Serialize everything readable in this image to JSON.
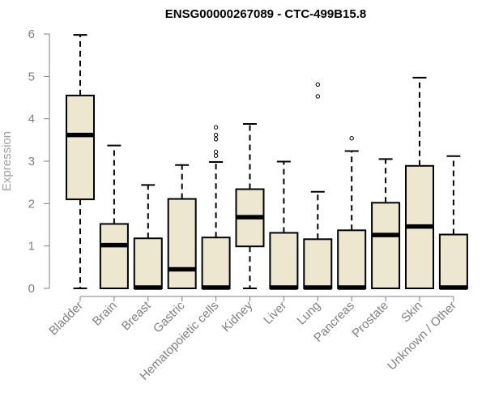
{
  "chart_data": {
    "type": "boxplot",
    "title": "ENSG00000267089 - CTC-499B15.8",
    "xlabel": "",
    "ylabel": "Expression",
    "ylim": [
      0,
      6
    ],
    "yticks": [
      0,
      1,
      2,
      3,
      4,
      5,
      6
    ],
    "grid": false,
    "box_fill": "#ede7d0",
    "box_stroke": "#000000",
    "categories": [
      "Bladder",
      "Brain",
      "Breast",
      "Gastric",
      "Hematopoietic cells",
      "Kidney",
      "Liver",
      "Lung",
      "Pancreas",
      "Prostate",
      "Skin",
      "Unknown / Other"
    ],
    "boxes": [
      {
        "whisker_low": 0,
        "q1": 2.1,
        "median": 3.62,
        "q3": 4.55,
        "whisker_high": 5.98,
        "outliers": []
      },
      {
        "whisker_low": 0,
        "q1": 0,
        "median": 1.02,
        "q3": 1.52,
        "whisker_high": 3.37,
        "outliers": []
      },
      {
        "whisker_low": 0,
        "q1": 0,
        "median": 0.02,
        "q3": 1.18,
        "whisker_high": 2.44,
        "outliers": []
      },
      {
        "whisker_low": 0,
        "q1": 0,
        "median": 0.45,
        "q3": 2.11,
        "whisker_high": 2.91,
        "outliers": []
      },
      {
        "whisker_low": 0,
        "q1": 0,
        "median": 0.02,
        "q3": 1.2,
        "whisker_high": 2.98,
        "outliers": [
          3.13,
          3.22,
          3.52,
          3.62,
          3.8
        ]
      },
      {
        "whisker_low": 0,
        "q1": 0.99,
        "median": 1.68,
        "q3": 2.34,
        "whisker_high": 3.88,
        "outliers": []
      },
      {
        "whisker_low": 0,
        "q1": 0,
        "median": 0.02,
        "q3": 1.31,
        "whisker_high": 2.99,
        "outliers": []
      },
      {
        "whisker_low": 0,
        "q1": 0,
        "median": 0.02,
        "q3": 1.16,
        "whisker_high": 2.28,
        "outliers": [
          4.53,
          4.81
        ]
      },
      {
        "whisker_low": 0,
        "q1": 0,
        "median": 0.02,
        "q3": 1.37,
        "whisker_high": 3.24,
        "outliers": [
          3.54
        ]
      },
      {
        "whisker_low": 0,
        "q1": 0,
        "median": 1.26,
        "q3": 2.02,
        "whisker_high": 3.05,
        "outliers": []
      },
      {
        "whisker_low": 0,
        "q1": 0,
        "median": 1.46,
        "q3": 2.89,
        "whisker_high": 4.97,
        "outliers": []
      },
      {
        "whisker_low": 0,
        "q1": 0,
        "median": 0.02,
        "q3": 1.27,
        "whisker_high": 3.12,
        "outliers": []
      }
    ]
  }
}
